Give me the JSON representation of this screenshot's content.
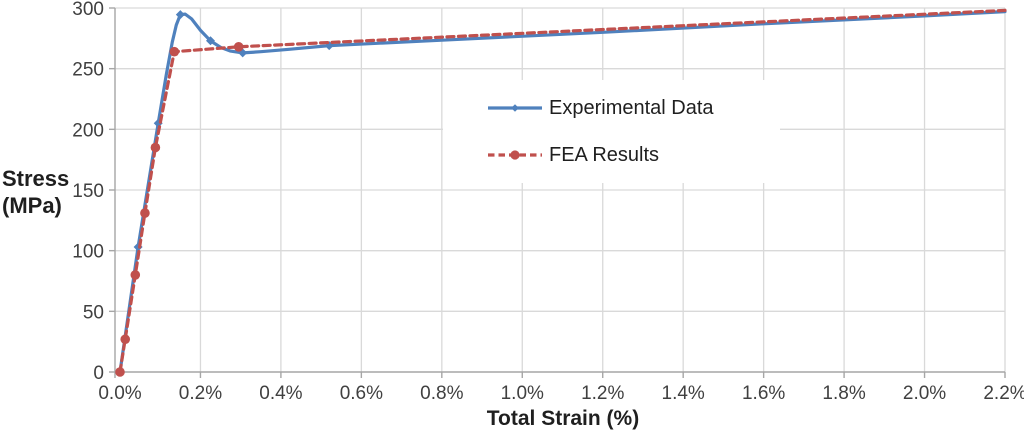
{
  "chart_data": {
    "type": "line",
    "title": "",
    "xlabel": "Total Strain (%)",
    "ylabel": "Stress (MPa)",
    "ylabel_lines": [
      "Stress",
      "(MPa)"
    ],
    "xlim": [
      0,
      2.2
    ],
    "ylim": [
      0,
      300
    ],
    "grid": true,
    "legend_position": "inside-center",
    "x_ticks": {
      "values": [
        0,
        0.2,
        0.4,
        0.6,
        0.8,
        1.0,
        1.2,
        1.4,
        1.6,
        1.8,
        2.0,
        2.2
      ],
      "labels": [
        "0.0%",
        "0.2%",
        "0.4%",
        "0.6%",
        "0.8%",
        "1.0%",
        "1.2%",
        "1.4%",
        "1.6%",
        "1.8%",
        "2.0%",
        "2.2%"
      ]
    },
    "y_ticks": {
      "values": [
        0,
        50,
        100,
        150,
        200,
        250,
        300
      ],
      "labels": [
        "0",
        "50",
        "100",
        "150",
        "200",
        "250",
        "300"
      ]
    },
    "series": [
      {
        "name": "Experimental Data",
        "color": "#4F81BD",
        "line_style": "solid",
        "marker": "diamond",
        "markers": [
          [
            0,
            0
          ],
          [
            0.045,
            103
          ],
          [
            0.095,
            205
          ],
          [
            0.15,
            294.5
          ],
          [
            0.225,
            273
          ],
          [
            0.305,
            263
          ],
          [
            0.52,
            269
          ]
        ],
        "path": [
          [
            0,
            0
          ],
          [
            0.045,
            103
          ],
          [
            0.095,
            205
          ],
          [
            0.115,
            245
          ],
          [
            0.13,
            272
          ],
          [
            0.14,
            286
          ],
          [
            0.15,
            294.5
          ],
          [
            0.162,
            295
          ],
          [
            0.178,
            291
          ],
          [
            0.2,
            281.5
          ],
          [
            0.225,
            273
          ],
          [
            0.25,
            267.5
          ],
          [
            0.275,
            264.5
          ],
          [
            0.305,
            263
          ],
          [
            0.35,
            264
          ],
          [
            0.42,
            266
          ],
          [
            0.52,
            269
          ],
          [
            0.8,
            273.5
          ],
          [
            1.2,
            280
          ],
          [
            1.6,
            287
          ],
          [
            2.0,
            293.5
          ],
          [
            2.2,
            297
          ]
        ]
      },
      {
        "name": "FEA Results",
        "color": "#C0504D",
        "line_style": "dashed",
        "marker": "circle",
        "markers": [
          [
            0,
            0
          ],
          [
            0.013,
            27
          ],
          [
            0.038,
            80
          ],
          [
            0.062,
            131
          ],
          [
            0.088,
            185
          ],
          [
            0.135,
            264
          ],
          [
            0.295,
            268
          ]
        ],
        "path": [
          [
            0,
            0
          ],
          [
            0.013,
            27
          ],
          [
            0.038,
            80
          ],
          [
            0.062,
            131
          ],
          [
            0.088,
            185
          ],
          [
            0.135,
            264
          ],
          [
            0.295,
            268
          ],
          [
            2.2,
            298
          ]
        ]
      }
    ]
  },
  "style": {
    "background": "#FFFFFF",
    "grid_color": "#D9D9D9",
    "axis_color": "#A6A6A6",
    "tick_label_color": "#404040",
    "axis_title_color": "#1F1F1F",
    "legend_text_color": "#1F1F1F"
  }
}
